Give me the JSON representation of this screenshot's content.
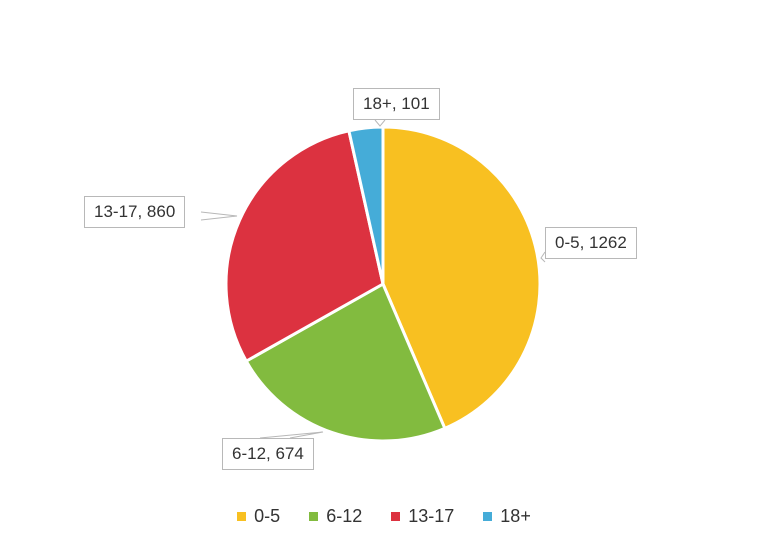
{
  "chart_data": {
    "type": "pie",
    "title": "",
    "categories": [
      "0-5",
      "6-12",
      "13-17",
      "18+"
    ],
    "values": [
      1262,
      674,
      860,
      101
    ],
    "colors": [
      "#F8C021",
      "#82BB3F",
      "#DC3240",
      "#45ACD8"
    ],
    "start_angle_deg": 0,
    "direction": "clockwise",
    "legend_position": "bottom",
    "data_labels": [
      "0-5, 1262",
      "6-12, 674",
      "13-17, 860",
      "18+, 101"
    ]
  },
  "labels": {
    "l0": "0-5, 1262",
    "l1": "6-12, 674",
    "l2": "13-17, 860",
    "l3": "18+, 101"
  },
  "legend": [
    {
      "label": "0-5",
      "color": "#F8C021"
    },
    {
      "label": "6-12",
      "color": "#82BB3F"
    },
    {
      "label": "13-17",
      "color": "#DC3240"
    },
    {
      "label": "18+",
      "color": "#45ACD8"
    }
  ]
}
